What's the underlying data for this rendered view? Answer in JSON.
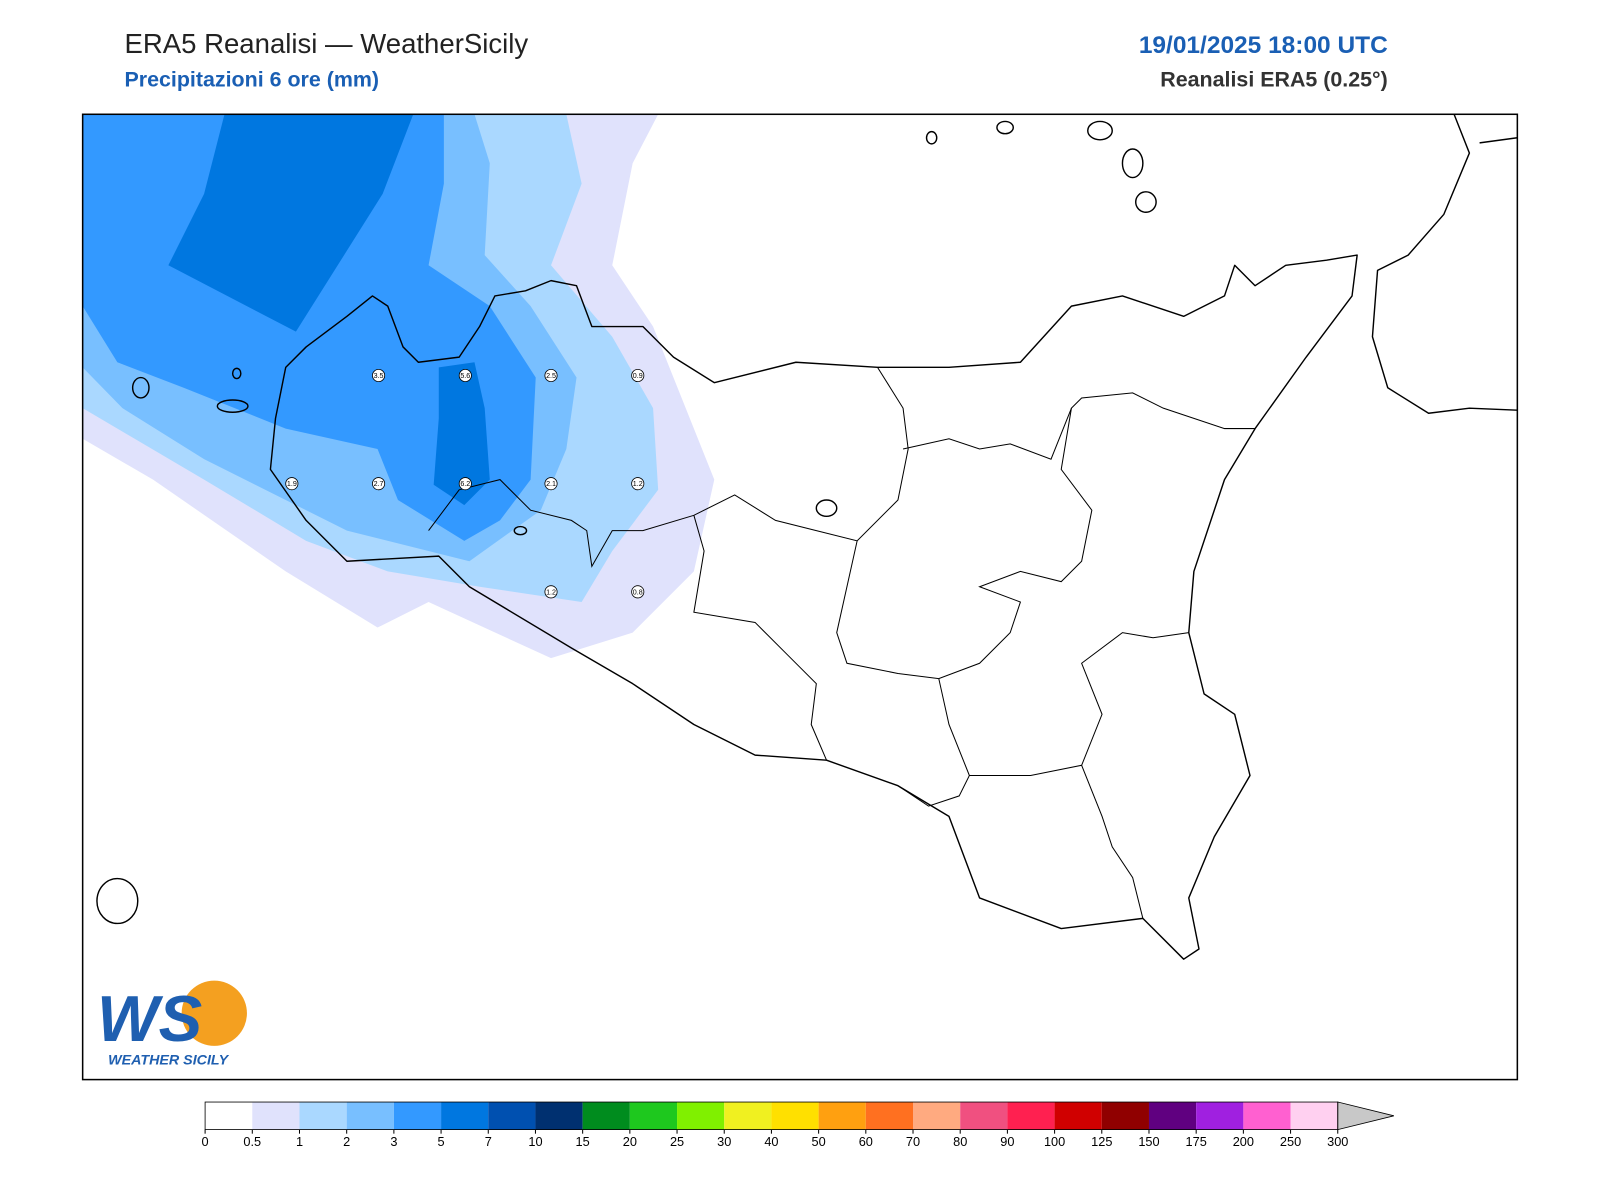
{
  "header": {
    "title": "ERA5 Reanalisi — WeatherSicily",
    "subtitle": "Precipitazioni 6 ore (mm)",
    "datetime": "19/01/2025 18:00 UTC",
    "source": "Reanalisi ERA5 (0.25°)"
  },
  "stations": [
    3.5,
    5.6,
    2.5,
    0.9,
    1.9,
    2.7,
    6.2,
    2.1,
    1.2,
    1.2,
    0.8
  ],
  "colorbar": {
    "bounds": [
      0,
      0.5,
      1,
      2,
      3,
      5,
      7,
      10,
      15,
      20,
      25,
      30,
      40,
      50,
      60,
      70,
      80,
      90,
      100,
      125,
      150,
      175,
      200,
      250,
      300
    ],
    "colors": [
      "#ffffff",
      "#e0e2fc",
      "#aad8ff",
      "#78bfff",
      "#3399ff",
      "#0077e0",
      "#0050b0",
      "#003070",
      "#008c1e",
      "#1ec81e",
      "#80f000",
      "#f0f020",
      "#ffe000",
      "#ffa010",
      "#ff7020",
      "#ffaa80",
      "#f05080",
      "#ff2050",
      "#d00000",
      "#900000",
      "#600080",
      "#a020e0",
      "#ff60d0",
      "#ffd0f0"
    ],
    "extend_color": "#c8c8c8"
  },
  "logo": {
    "mark": "WS",
    "text": "WEATHER SICILY"
  }
}
